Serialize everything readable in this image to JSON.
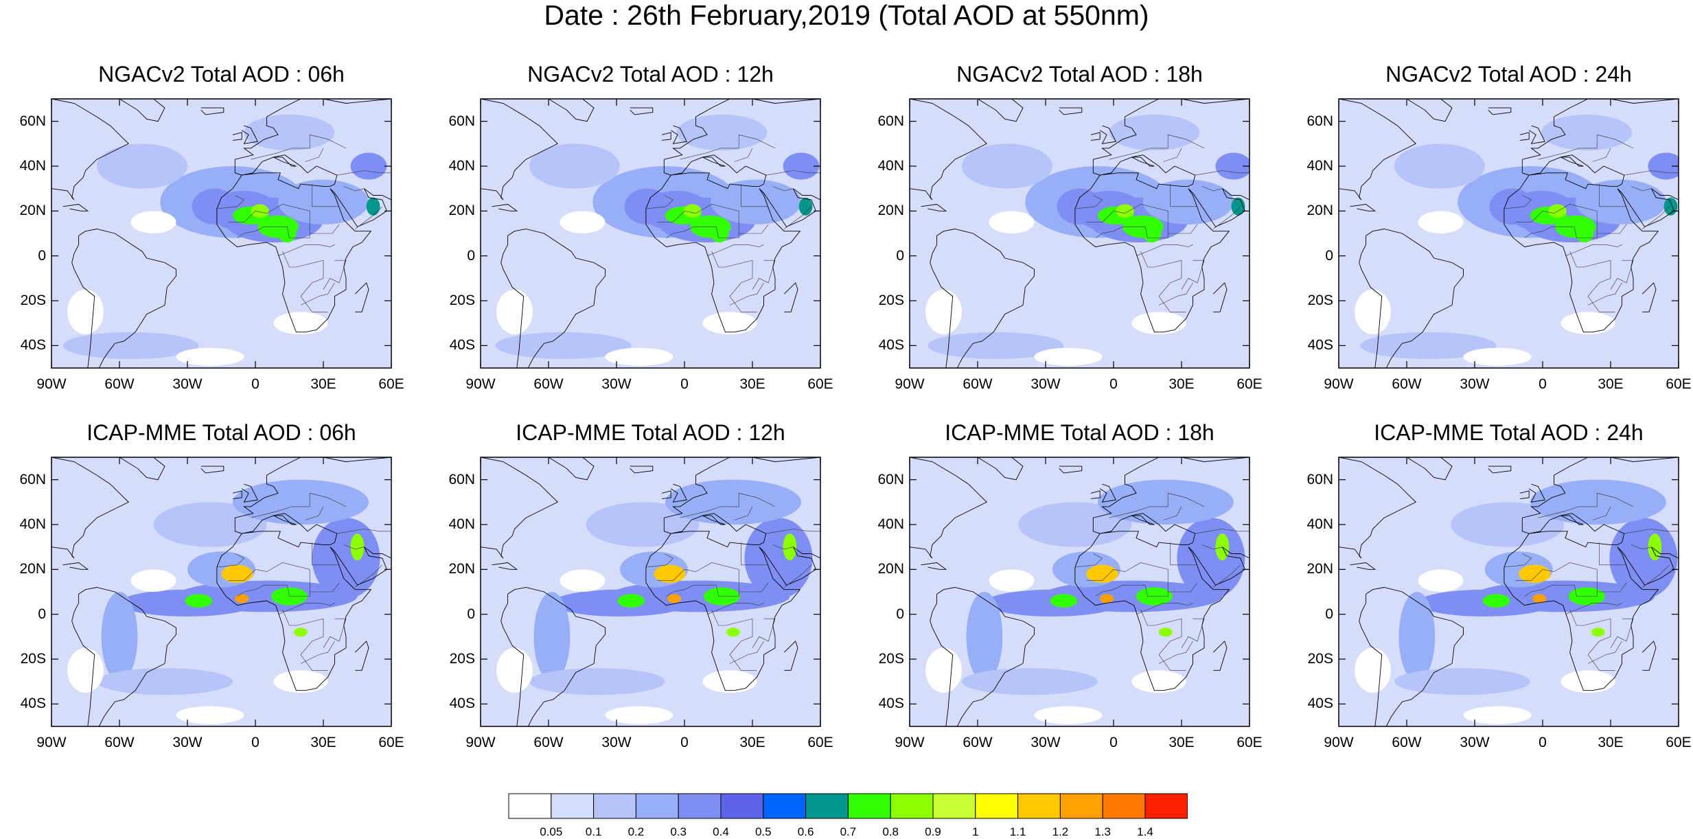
{
  "title": "Date : 26th February,2019 (Total AOD at 550nm)",
  "panels": [
    {
      "title": "NGACv2 Total AOD : 06h",
      "model": "NGACv2",
      "hour": "06h"
    },
    {
      "title": "NGACv2 Total AOD : 12h",
      "model": "NGACv2",
      "hour": "12h"
    },
    {
      "title": "NGACv2 Total AOD : 18h",
      "model": "NGACv2",
      "hour": "18h"
    },
    {
      "title": "NGACv2 Total AOD : 24h",
      "model": "NGACv2",
      "hour": "24h"
    },
    {
      "title": "ICAP-MME Total AOD : 06h",
      "model": "ICAP-MME",
      "hour": "06h"
    },
    {
      "title": "ICAP-MME Total AOD : 12h",
      "model": "ICAP-MME",
      "hour": "12h"
    },
    {
      "title": "ICAP-MME Total AOD : 18h",
      "model": "ICAP-MME",
      "hour": "18h"
    },
    {
      "title": "ICAP-MME Total AOD : 24h",
      "model": "ICAP-MME",
      "hour": "24h"
    }
  ],
  "map": {
    "lat_labels": [
      "60N",
      "40N",
      "20N",
      "0",
      "20S",
      "40S"
    ],
    "lon_labels": [
      "90W",
      "60W",
      "30W",
      "0",
      "30E",
      "60E"
    ],
    "lat_range": [
      -50,
      70
    ],
    "lon_range": [
      -90,
      60
    ]
  },
  "colorbar": {
    "labels": [
      "0.05",
      "0.1",
      "0.2",
      "0.3",
      "0.4",
      "0.5",
      "0.6",
      "0.7",
      "0.8",
      "0.9",
      "1",
      "1.1",
      "1.2",
      "1.3",
      "1.4"
    ],
    "colors": [
      "#ffffff",
      "#d6ddfb",
      "#b7c4f9",
      "#98aef7",
      "#7f8ef3",
      "#5e64ea",
      "#0064ff",
      "#00968c",
      "#32ff00",
      "#8cff00",
      "#c8ff32",
      "#ffff00",
      "#ffc800",
      "#ffa000",
      "#ff7800",
      "#ff1e00"
    ]
  },
  "chart_data": {
    "type": "heatmap",
    "title": "Date : 26th February,2019 (Total AOD at 550nm)",
    "variable": "Total AOD at 550nm",
    "color_levels": [
      0.05,
      0.1,
      0.2,
      0.3,
      0.4,
      0.5,
      0.6,
      0.7,
      0.8,
      0.9,
      1,
      1.1,
      1.2,
      1.3,
      1.4
    ]
  }
}
